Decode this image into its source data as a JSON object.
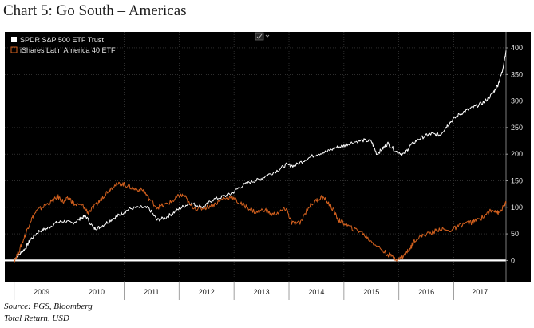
{
  "title": "Chart 5: Go South – Americas",
  "source": "Source: PGS, Bloomberg",
  "note": "Total Return, USD",
  "colors": {
    "background": "#000000",
    "spy": "#ffffff",
    "ilf": "#d2601e",
    "axis_text": "#e6e6e6",
    "grid": "#4a4a4a",
    "xaxis_band": "#ffffff"
  },
  "chart_data": {
    "type": "line",
    "title": "",
    "xlabel": "",
    "ylabel": "",
    "x_ticks": [
      "2009",
      "2010",
      "2011",
      "2012",
      "2013",
      "2014",
      "2015",
      "2016",
      "2017"
    ],
    "y_ticks": [
      0,
      50,
      100,
      150,
      200,
      250,
      300,
      350,
      400
    ],
    "ylim": [
      -40,
      430
    ],
    "xlim": [
      2008.83,
      2017.95
    ],
    "grid": true,
    "legend_position": "top-left",
    "zero_line": true,
    "series": [
      {
        "name": "SPDR S&P 500 ETF Trust",
        "color": "#ffffff",
        "points": [
          [
            2009.0,
            2
          ],
          [
            2009.1,
            12
          ],
          [
            2009.2,
            22
          ],
          [
            2009.3,
            40
          ],
          [
            2009.45,
            55
          ],
          [
            2009.6,
            60
          ],
          [
            2009.75,
            70
          ],
          [
            2009.9,
            74
          ],
          [
            2010.05,
            70
          ],
          [
            2010.2,
            78
          ],
          [
            2010.3,
            84
          ],
          [
            2010.45,
            60
          ],
          [
            2010.55,
            62
          ],
          [
            2010.7,
            72
          ],
          [
            2010.85,
            82
          ],
          [
            2010.95,
            88
          ],
          [
            2011.1,
            97
          ],
          [
            2011.3,
            100
          ],
          [
            2011.45,
            98
          ],
          [
            2011.6,
            76
          ],
          [
            2011.75,
            80
          ],
          [
            2011.9,
            90
          ],
          [
            2012.05,
            100
          ],
          [
            2012.2,
            108
          ],
          [
            2012.35,
            103
          ],
          [
            2012.45,
            100
          ],
          [
            2012.6,
            114
          ],
          [
            2012.8,
            120
          ],
          [
            2012.95,
            125
          ],
          [
            2013.1,
            138
          ],
          [
            2013.3,
            148
          ],
          [
            2013.45,
            152
          ],
          [
            2013.6,
            160
          ],
          [
            2013.8,
            170
          ],
          [
            2013.95,
            180
          ],
          [
            2014.1,
            178
          ],
          [
            2014.3,
            190
          ],
          [
            2014.5,
            200
          ],
          [
            2014.7,
            205
          ],
          [
            2014.85,
            212
          ],
          [
            2015.0,
            216
          ],
          [
            2015.15,
            222
          ],
          [
            2015.35,
            226
          ],
          [
            2015.5,
            224
          ],
          [
            2015.6,
            200
          ],
          [
            2015.7,
            210
          ],
          [
            2015.8,
            220
          ],
          [
            2015.95,
            205
          ],
          [
            2016.1,
            200
          ],
          [
            2016.2,
            215
          ],
          [
            2016.35,
            228
          ],
          [
            2016.5,
            235
          ],
          [
            2016.6,
            238
          ],
          [
            2016.75,
            236
          ],
          [
            2016.85,
            250
          ],
          [
            2016.95,
            262
          ],
          [
            2017.1,
            275
          ],
          [
            2017.25,
            283
          ],
          [
            2017.4,
            290
          ],
          [
            2017.55,
            298
          ],
          [
            2017.7,
            313
          ],
          [
            2017.8,
            330
          ],
          [
            2017.88,
            355
          ],
          [
            2017.95,
            395
          ]
        ]
      },
      {
        "name": "iShares Latin America 40 ETF",
        "color": "#d2601e",
        "points": [
          [
            2009.0,
            0
          ],
          [
            2009.1,
            20
          ],
          [
            2009.2,
            48
          ],
          [
            2009.3,
            75
          ],
          [
            2009.4,
            92
          ],
          [
            2009.55,
            103
          ],
          [
            2009.7,
            112
          ],
          [
            2009.8,
            120
          ],
          [
            2009.9,
            110
          ],
          [
            2010.0,
            118
          ],
          [
            2010.1,
            105
          ],
          [
            2010.25,
            103
          ],
          [
            2010.35,
            90
          ],
          [
            2010.5,
            105
          ],
          [
            2010.6,
            118
          ],
          [
            2010.7,
            130
          ],
          [
            2010.8,
            140
          ],
          [
            2010.95,
            145
          ],
          [
            2011.05,
            141
          ],
          [
            2011.2,
            134
          ],
          [
            2011.35,
            132
          ],
          [
            2011.45,
            117
          ],
          [
            2011.6,
            100
          ],
          [
            2011.75,
            105
          ],
          [
            2011.9,
            113
          ],
          [
            2012.0,
            122
          ],
          [
            2012.1,
            122
          ],
          [
            2012.2,
            104
          ],
          [
            2012.35,
            96
          ],
          [
            2012.5,
            100
          ],
          [
            2012.65,
            106
          ],
          [
            2012.8,
            116
          ],
          [
            2012.95,
            120
          ],
          [
            2013.1,
            108
          ],
          [
            2013.25,
            100
          ],
          [
            2013.4,
            90
          ],
          [
            2013.55,
            96
          ],
          [
            2013.7,
            86
          ],
          [
            2013.85,
            92
          ],
          [
            2013.95,
            98
          ],
          [
            2014.05,
            70
          ],
          [
            2014.2,
            70
          ],
          [
            2014.35,
            100
          ],
          [
            2014.5,
            113
          ],
          [
            2014.6,
            120
          ],
          [
            2014.7,
            110
          ],
          [
            2014.8,
            96
          ],
          [
            2014.9,
            76
          ],
          [
            2015.0,
            70
          ],
          [
            2015.15,
            60
          ],
          [
            2015.3,
            55
          ],
          [
            2015.45,
            40
          ],
          [
            2015.6,
            28
          ],
          [
            2015.75,
            15
          ],
          [
            2015.9,
            5
          ],
          [
            2016.0,
            2
          ],
          [
            2016.1,
            10
          ],
          [
            2016.2,
            22
          ],
          [
            2016.3,
            40
          ],
          [
            2016.45,
            48
          ],
          [
            2016.6,
            52
          ],
          [
            2016.75,
            60
          ],
          [
            2016.9,
            55
          ],
          [
            2017.05,
            62
          ],
          [
            2017.2,
            70
          ],
          [
            2017.35,
            72
          ],
          [
            2017.5,
            80
          ],
          [
            2017.65,
            92
          ],
          [
            2017.75,
            95
          ],
          [
            2017.82,
            88
          ],
          [
            2017.9,
            100
          ],
          [
            2017.95,
            108
          ]
        ]
      }
    ]
  }
}
